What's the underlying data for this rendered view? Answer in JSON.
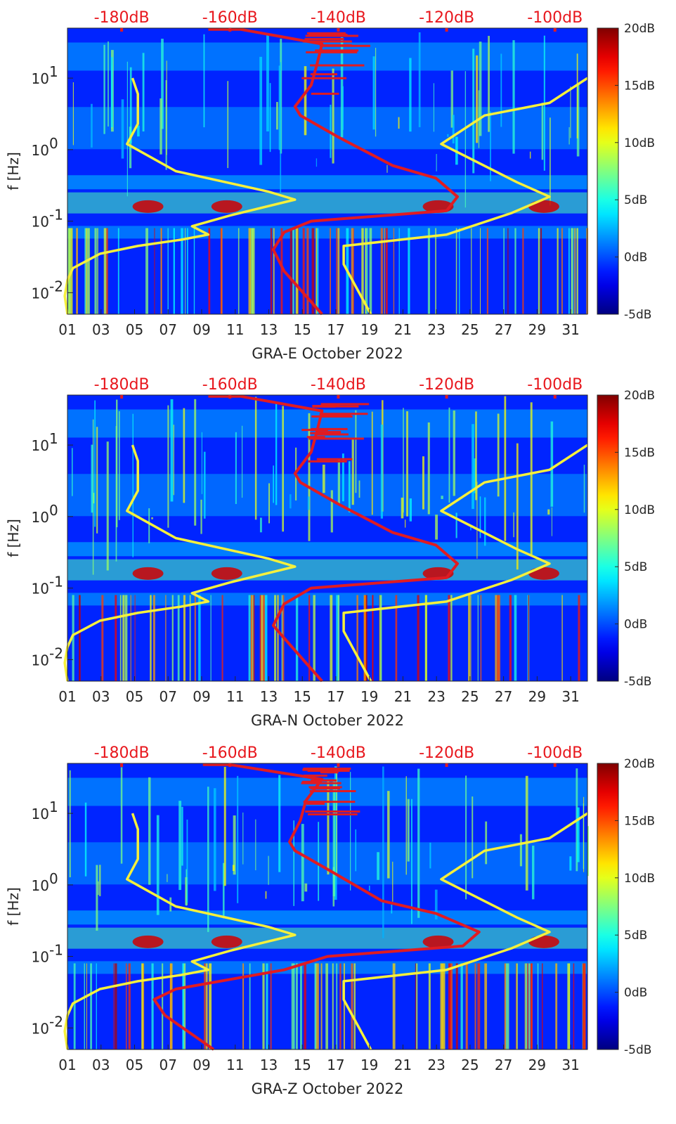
{
  "chart_data": [
    {
      "type": "heatmap",
      "station": "GRA-E",
      "xlabel": "GRA-E October 2022",
      "ylabel": "f [Hz]",
      "x_ticks": [
        "01",
        "03",
        "05",
        "07",
        "09",
        "11",
        "13",
        "15",
        "17",
        "19",
        "21",
        "23",
        "25",
        "27",
        "29",
        "31"
      ],
      "x_range_days": [
        1,
        32
      ],
      "y_scale": "log",
      "y_ticks": [
        "10^-2",
        "10^-1",
        "10^0",
        "10^1"
      ],
      "y_range_hz": [
        0.005,
        50
      ],
      "top_axis_ticks": [
        "-180dB",
        "-160dB",
        "-140dB",
        "-120dB",
        "-100dB"
      ],
      "top_axis_range_db": [
        -190,
        -94
      ],
      "colorbar_ticks": [
        "20dB",
        "15dB",
        "10dB",
        "5dB",
        "0dB",
        "-5dB"
      ],
      "colorbar_range_db": [
        -5,
        20
      ],
      "overlays": [
        {
          "color": "yellow",
          "description": "noise model curve",
          "points_db_hz": [
            [
              -190,
              0.005
            ],
            [
              -190.5,
              0.009
            ],
            [
              -190,
              0.015
            ],
            [
              -189,
              0.022
            ],
            [
              -184,
              0.035
            ],
            [
              -177,
              0.045
            ],
            [
              -169,
              0.055
            ],
            [
              -164,
              0.065
            ],
            [
              -167,
              0.085
            ],
            [
              -160,
              0.12
            ],
            [
              -148,
              0.2
            ],
            [
              -153,
              0.26
            ],
            [
              -170,
              0.5
            ],
            [
              -179,
              1.2
            ],
            [
              -177,
              2.3
            ],
            [
              -177,
              6
            ],
            [
              -178,
              10
            ]
          ]
        },
        {
          "color": "yellow",
          "description": "noise model curve",
          "points_db_hz": [
            [
              -134,
              0.005
            ],
            [
              -139,
              0.025
            ],
            [
              -139,
              0.045
            ],
            [
              -120,
              0.065
            ],
            [
              -108,
              0.13
            ],
            [
              -101,
              0.22
            ],
            [
              -107,
              0.35
            ],
            [
              -121,
              1.2
            ],
            [
              -113,
              3
            ],
            [
              -101,
              4.5
            ],
            [
              -94,
              10
            ]
          ]
        },
        {
          "color": "red",
          "description": "station PSD",
          "points_db_hz": [
            [
              -143,
              0.005
            ],
            [
              -150,
              0.02
            ],
            [
              -152,
              0.04
            ],
            [
              -150,
              0.07
            ],
            [
              -145,
              0.1
            ],
            [
              -120,
              0.14
            ],
            [
              -118,
              0.22
            ],
            [
              -122,
              0.4
            ],
            [
              -130,
              0.6
            ],
            [
              -140,
              1.5
            ],
            [
              -147,
              3
            ],
            [
              -148,
              4
            ],
            [
              -145,
              8
            ],
            [
              -144,
              15
            ],
            [
              -143,
              30
            ],
            [
              -158,
              48
            ],
            [
              -164,
              48
            ]
          ]
        }
      ]
    },
    {
      "type": "heatmap",
      "station": "GRA-N",
      "xlabel": "GRA-N October 2022",
      "ylabel": "f [Hz]",
      "x_ticks": [
        "01",
        "03",
        "05",
        "07",
        "09",
        "11",
        "13",
        "15",
        "17",
        "19",
        "21",
        "23",
        "25",
        "27",
        "29",
        "31"
      ],
      "x_range_days": [
        1,
        32
      ],
      "y_scale": "log",
      "y_ticks": [
        "10^-2",
        "10^-1",
        "10^0",
        "10^1"
      ],
      "y_range_hz": [
        0.005,
        50
      ],
      "top_axis_ticks": [
        "-180dB",
        "-160dB",
        "-140dB",
        "-120dB",
        "-100dB"
      ],
      "top_axis_range_db": [
        -190,
        -94
      ],
      "colorbar_ticks": [
        "20dB",
        "15dB",
        "10dB",
        "5dB",
        "0dB",
        "-5dB"
      ],
      "colorbar_range_db": [
        -5,
        20
      ],
      "overlays": [
        {
          "color": "yellow",
          "description": "noise model curve",
          "points_db_hz": [
            [
              -190,
              0.005
            ],
            [
              -190.5,
              0.009
            ],
            [
              -190,
              0.015
            ],
            [
              -189,
              0.022
            ],
            [
              -184,
              0.035
            ],
            [
              -177,
              0.045
            ],
            [
              -169,
              0.055
            ],
            [
              -164,
              0.065
            ],
            [
              -167,
              0.085
            ],
            [
              -160,
              0.12
            ],
            [
              -148,
              0.2
            ],
            [
              -153,
              0.26
            ],
            [
              -170,
              0.5
            ],
            [
              -179,
              1.2
            ],
            [
              -177,
              2.3
            ],
            [
              -177,
              6
            ],
            [
              -178,
              10
            ]
          ]
        },
        {
          "color": "yellow",
          "description": "noise model curve",
          "points_db_hz": [
            [
              -134,
              0.005
            ],
            [
              -139,
              0.025
            ],
            [
              -139,
              0.045
            ],
            [
              -120,
              0.065
            ],
            [
              -108,
              0.13
            ],
            [
              -101,
              0.22
            ],
            [
              -107,
              0.35
            ],
            [
              -121,
              1.2
            ],
            [
              -113,
              3
            ],
            [
              -101,
              4.5
            ],
            [
              -94,
              10
            ]
          ]
        },
        {
          "color": "red",
          "description": "station PSD",
          "points_db_hz": [
            [
              -143,
              0.005
            ],
            [
              -150,
              0.02
            ],
            [
              -152,
              0.03
            ],
            [
              -150,
              0.06
            ],
            [
              -145,
              0.1
            ],
            [
              -120,
              0.14
            ],
            [
              -118,
              0.22
            ],
            [
              -122,
              0.4
            ],
            [
              -130,
              0.6
            ],
            [
              -140,
              1.5
            ],
            [
              -147,
              3
            ],
            [
              -148,
              4
            ],
            [
              -145,
              8
            ],
            [
              -144,
              15
            ],
            [
              -143,
              30
            ],
            [
              -158,
              48
            ],
            [
              -164,
              48
            ]
          ]
        }
      ]
    },
    {
      "type": "heatmap",
      "station": "GRA-Z",
      "xlabel": "GRA-Z October 2022",
      "ylabel": "f [Hz]",
      "x_ticks": [
        "01",
        "03",
        "05",
        "07",
        "09",
        "11",
        "13",
        "15",
        "17",
        "19",
        "21",
        "23",
        "25",
        "27",
        "29",
        "31"
      ],
      "x_range_days": [
        1,
        32
      ],
      "y_scale": "log",
      "y_ticks": [
        "10^-2",
        "10^-1",
        "10^0",
        "10^1"
      ],
      "y_range_hz": [
        0.005,
        50
      ],
      "top_axis_ticks": [
        "-180dB",
        "-160dB",
        "-140dB",
        "-120dB",
        "-100dB"
      ],
      "top_axis_range_db": [
        -190,
        -94
      ],
      "colorbar_ticks": [
        "20dB",
        "15dB",
        "10dB",
        "5dB",
        "0dB",
        "-5dB"
      ],
      "colorbar_range_db": [
        -5,
        20
      ],
      "overlays": [
        {
          "color": "yellow",
          "description": "noise model curve",
          "points_db_hz": [
            [
              -190,
              0.005
            ],
            [
              -190.5,
              0.009
            ],
            [
              -190,
              0.015
            ],
            [
              -189,
              0.022
            ],
            [
              -184,
              0.035
            ],
            [
              -177,
              0.045
            ],
            [
              -169,
              0.055
            ],
            [
              -164,
              0.065
            ],
            [
              -167,
              0.085
            ],
            [
              -160,
              0.12
            ],
            [
              -148,
              0.2
            ],
            [
              -153,
              0.26
            ],
            [
              -170,
              0.5
            ],
            [
              -179,
              1.2
            ],
            [
              -177,
              2.3
            ],
            [
              -177,
              6
            ],
            [
              -178,
              10
            ]
          ]
        },
        {
          "color": "yellow",
          "description": "noise model curve",
          "points_db_hz": [
            [
              -134,
              0.005
            ],
            [
              -139,
              0.025
            ],
            [
              -139,
              0.045
            ],
            [
              -120,
              0.065
            ],
            [
              -108,
              0.13
            ],
            [
              -101,
              0.22
            ],
            [
              -107,
              0.35
            ],
            [
              -121,
              1.2
            ],
            [
              -113,
              3
            ],
            [
              -101,
              4.5
            ],
            [
              -94,
              10
            ]
          ]
        },
        {
          "color": "red",
          "description": "station PSD",
          "points_db_hz": [
            [
              -163,
              0.005
            ],
            [
              -172,
              0.015
            ],
            [
              -174,
              0.025
            ],
            [
              -170,
              0.035
            ],
            [
              -150,
              0.065
            ],
            [
              -142,
              0.1
            ],
            [
              -117,
              0.14
            ],
            [
              -114,
              0.22
            ],
            [
              -122,
              0.4
            ],
            [
              -132,
              0.6
            ],
            [
              -141,
              1.5
            ],
            [
              -148,
              3
            ],
            [
              -149,
              4
            ],
            [
              -147,
              8
            ],
            [
              -146,
              15
            ],
            [
              -143,
              30
            ],
            [
              -160,
              48
            ],
            [
              -165,
              48
            ]
          ]
        }
      ]
    }
  ]
}
